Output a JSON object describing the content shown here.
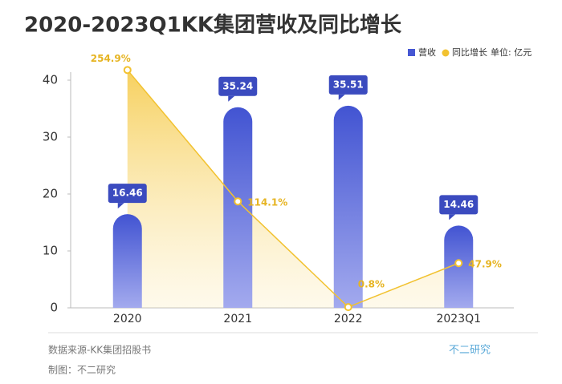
{
  "chart_data": {
    "type": "bar-line",
    "title": "2020-2023Q1KK集团营收及同比增长",
    "unit_label": "单位: 亿元",
    "categories": [
      "2020",
      "2021",
      "2022",
      "2023Q1"
    ],
    "series": [
      {
        "name": "营收",
        "color": "#4657d3",
        "values": [
          16.46,
          35.24,
          35.51,
          14.46
        ]
      },
      {
        "name": "同比增长",
        "color": "#f2c230",
        "axis": "y2",
        "values": [
          254.9,
          114.1,
          0.8,
          47.9
        ],
        "value_labels": [
          "254.9%",
          "114.1%",
          "0.8%",
          "47.9%"
        ]
      }
    ],
    "ylim": [
      0,
      40
    ],
    "yticks": [
      0,
      10,
      20,
      30,
      40
    ],
    "y2lim": [
      0,
      244
    ],
    "source": "数据来源-KK集团招股书",
    "credit": "制图：不二研究",
    "brand": "不二研究"
  }
}
